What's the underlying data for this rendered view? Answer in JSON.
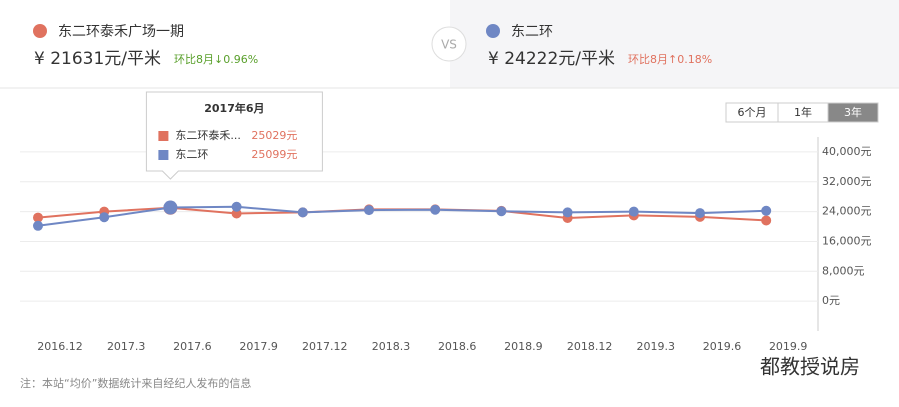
{
  "header": {
    "left": {
      "price": "¥ 21631元/平米",
      "change": "环比8月↓0.96%"
    },
    "vs": "VS",
    "right": {
      "price": "¥ 24222元/平米",
      "change": "环比8月↑0.18%"
    }
  },
  "buttons": [
    "6个月",
    "1年",
    "3年"
  ],
  "tooltip": {
    "title": "2017年6月",
    "names": [
      "东二环泰禾...",
      "东二环"
    ]
  },
  "footnote": "注：本站“均价”数据统计来自经纪人发布的信息",
  "watermark": "都教授说房",
  "chart_data": {
    "type": "line",
    "categories": [
      "2016.12",
      "2017.3",
      "2017.6",
      "2017.9",
      "2017.12",
      "2018.3",
      "2018.6",
      "2018.9",
      "2018.12",
      "2019.3",
      "2019.6",
      "2019.9"
    ],
    "series": [
      {
        "name": "东二环泰禾广场一期",
        "color": "#e0725f",
        "values": [
          22400,
          24000,
          25029,
          23500,
          23800,
          24600,
          24600,
          24200,
          22300,
          23000,
          22600,
          21631
        ],
        "value_labels": [
          null,
          null,
          "25029元",
          null,
          null,
          null,
          null,
          null,
          null,
          null,
          null,
          null
        ]
      },
      {
        "name": "东二环",
        "color": "#6f87c4",
        "values": [
          20200,
          22500,
          25099,
          25300,
          23800,
          24400,
          24500,
          24100,
          23800,
          24000,
          23600,
          24222
        ],
        "value_labels": [
          null,
          null,
          "25099元",
          null,
          null,
          null,
          null,
          null,
          null,
          null,
          null,
          null
        ]
      }
    ],
    "ylim": [
      -8000,
      44000
    ],
    "yticks": [
      {
        "value": 0,
        "label": "0元"
      },
      {
        "value": 8000,
        "label": "8,000元"
      },
      {
        "value": 16000,
        "label": "16,000元"
      },
      {
        "value": 24000,
        "label": "24,000元"
      },
      {
        "value": 32000,
        "label": "32,000元"
      },
      {
        "value": 40000,
        "label": "40,000元"
      }
    ],
    "grid": true
  }
}
